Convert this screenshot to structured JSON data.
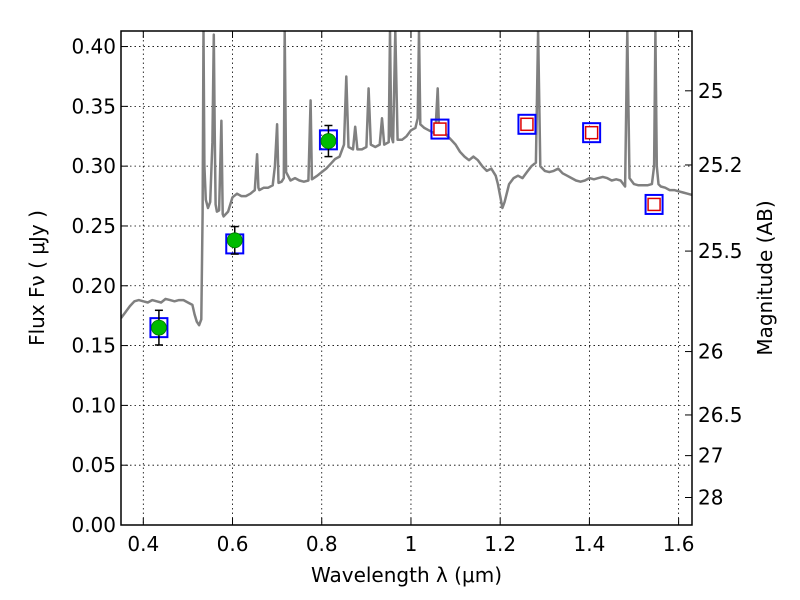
{
  "chart_data": {
    "type": "line",
    "xlabel": "Wavelength  λ (μm)",
    "ylabel": "Flux  Fν ( μJy )",
    "ylabel_right": "Magnitude (AB)",
    "xlim": [
      0.35,
      1.63
    ],
    "ylim": [
      0.0,
      0.413
    ],
    "grid": true,
    "x_ticks": [
      {
        "value": 0.4,
        "label": "0.4"
      },
      {
        "value": 0.6,
        "label": "0.6"
      },
      {
        "value": 0.8,
        "label": "0.8"
      },
      {
        "value": 1.0,
        "label": "1"
      },
      {
        "value": 1.2,
        "label": "1.2"
      },
      {
        "value": 1.4,
        "label": "1.4"
      },
      {
        "value": 1.6,
        "label": "1.6"
      }
    ],
    "y_ticks": [
      {
        "value": 0.0,
        "label": "0.00"
      },
      {
        "value": 0.05,
        "label": "0.05"
      },
      {
        "value": 0.1,
        "label": "0.10"
      },
      {
        "value": 0.15,
        "label": "0.15"
      },
      {
        "value": 0.2,
        "label": "0.20"
      },
      {
        "value": 0.25,
        "label": "0.25"
      },
      {
        "value": 0.3,
        "label": "0.30"
      },
      {
        "value": 0.35,
        "label": "0.35"
      },
      {
        "value": 0.4,
        "label": "0.40"
      }
    ],
    "right_ticks": [
      {
        "flux": 0.363,
        "label": "25"
      },
      {
        "flux": 0.301,
        "label": "25.2"
      },
      {
        "flux": 0.229,
        "label": "25.5"
      },
      {
        "flux": 0.145,
        "label": "26"
      },
      {
        "flux": 0.092,
        "label": "26.5"
      },
      {
        "flux": 0.058,
        "label": "27"
      },
      {
        "flux": 0.023,
        "label": "28"
      }
    ],
    "series": [
      {
        "kind": "line",
        "color": "#808080",
        "points": [
          [
            0.35,
            0.173
          ],
          [
            0.36,
            0.178
          ],
          [
            0.37,
            0.183
          ],
          [
            0.38,
            0.187
          ],
          [
            0.39,
            0.188
          ],
          [
            0.4,
            0.187
          ],
          [
            0.41,
            0.186
          ],
          [
            0.42,
            0.188
          ],
          [
            0.43,
            0.187
          ],
          [
            0.44,
            0.186
          ],
          [
            0.45,
            0.189
          ],
          [
            0.46,
            0.188
          ],
          [
            0.47,
            0.187
          ],
          [
            0.48,
            0.188
          ],
          [
            0.49,
            0.188
          ],
          [
            0.5,
            0.186
          ],
          [
            0.51,
            0.184
          ],
          [
            0.515,
            0.176
          ],
          [
            0.52,
            0.17
          ],
          [
            0.525,
            0.167
          ],
          [
            0.53,
            0.172
          ],
          [
            0.533,
            0.26
          ],
          [
            0.535,
            0.413
          ],
          [
            0.537,
            0.3
          ],
          [
            0.54,
            0.272
          ],
          [
            0.545,
            0.265
          ],
          [
            0.55,
            0.27
          ],
          [
            0.555,
            0.32
          ],
          [
            0.558,
            0.41
          ],
          [
            0.56,
            0.33
          ],
          [
            0.562,
            0.268
          ],
          [
            0.565,
            0.262
          ],
          [
            0.57,
            0.263
          ],
          [
            0.575,
            0.338
          ],
          [
            0.578,
            0.26
          ],
          [
            0.58,
            0.258
          ],
          [
            0.59,
            0.262
          ],
          [
            0.6,
            0.274
          ],
          [
            0.61,
            0.277
          ],
          [
            0.62,
            0.275
          ],
          [
            0.63,
            0.275
          ],
          [
            0.64,
            0.277
          ],
          [
            0.65,
            0.28
          ],
          [
            0.655,
            0.31
          ],
          [
            0.658,
            0.282
          ],
          [
            0.66,
            0.28
          ],
          [
            0.67,
            0.282
          ],
          [
            0.68,
            0.282
          ],
          [
            0.69,
            0.284
          ],
          [
            0.695,
            0.3
          ],
          [
            0.7,
            0.335
          ],
          [
            0.703,
            0.286
          ],
          [
            0.71,
            0.287
          ],
          [
            0.715,
            0.29
          ],
          [
            0.717,
            0.413
          ],
          [
            0.72,
            0.295
          ],
          [
            0.73,
            0.288
          ],
          [
            0.74,
            0.29
          ],
          [
            0.75,
            0.288
          ],
          [
            0.76,
            0.287
          ],
          [
            0.77,
            0.288
          ],
          [
            0.775,
            0.355
          ],
          [
            0.778,
            0.289
          ],
          [
            0.79,
            0.292
          ],
          [
            0.8,
            0.295
          ],
          [
            0.81,
            0.298
          ],
          [
            0.82,
            0.302
          ],
          [
            0.83,
            0.306
          ],
          [
            0.84,
            0.308
          ],
          [
            0.85,
            0.318
          ],
          [
            0.855,
            0.375
          ],
          [
            0.86,
            0.316
          ],
          [
            0.87,
            0.314
          ],
          [
            0.875,
            0.333
          ],
          [
            0.88,
            0.314
          ],
          [
            0.89,
            0.314
          ],
          [
            0.9,
            0.316
          ],
          [
            0.905,
            0.365
          ],
          [
            0.91,
            0.318
          ],
          [
            0.92,
            0.316
          ],
          [
            0.93,
            0.318
          ],
          [
            0.935,
            0.34
          ],
          [
            0.94,
            0.318
          ],
          [
            0.95,
            0.32
          ],
          [
            0.953,
            0.413
          ],
          [
            0.956,
            0.325
          ],
          [
            0.96,
            0.32
          ],
          [
            0.965,
            0.413
          ],
          [
            0.97,
            0.322
          ],
          [
            0.98,
            0.322
          ],
          [
            0.99,
            0.325
          ],
          [
            1.0,
            0.33
          ],
          [
            1.01,
            0.332
          ],
          [
            1.015,
            0.34
          ],
          [
            1.018,
            0.413
          ],
          [
            1.021,
            0.335
          ],
          [
            1.03,
            0.332
          ],
          [
            1.04,
            0.33
          ],
          [
            1.05,
            0.328
          ],
          [
            1.055,
            0.33
          ],
          [
            1.06,
            0.365
          ],
          [
            1.063,
            0.33
          ],
          [
            1.07,
            0.33
          ],
          [
            1.08,
            0.326
          ],
          [
            1.09,
            0.322
          ],
          [
            1.1,
            0.318
          ],
          [
            1.11,
            0.312
          ],
          [
            1.12,
            0.308
          ],
          [
            1.13,
            0.305
          ],
          [
            1.14,
            0.308
          ],
          [
            1.15,
            0.305
          ],
          [
            1.16,
            0.3
          ],
          [
            1.17,
            0.296
          ],
          [
            1.18,
            0.298
          ],
          [
            1.19,
            0.292
          ],
          [
            1.195,
            0.285
          ],
          [
            1.2,
            0.275
          ],
          [
            1.205,
            0.265
          ],
          [
            1.21,
            0.27
          ],
          [
            1.22,
            0.285
          ],
          [
            1.23,
            0.29
          ],
          [
            1.24,
            0.292
          ],
          [
            1.25,
            0.29
          ],
          [
            1.26,
            0.295
          ],
          [
            1.27,
            0.3
          ],
          [
            1.28,
            0.303
          ],
          [
            1.285,
            0.413
          ],
          [
            1.29,
            0.3
          ],
          [
            1.3,
            0.296
          ],
          [
            1.31,
            0.295
          ],
          [
            1.32,
            0.296
          ],
          [
            1.33,
            0.298
          ],
          [
            1.34,
            0.294
          ],
          [
            1.35,
            0.292
          ],
          [
            1.36,
            0.29
          ],
          [
            1.37,
            0.288
          ],
          [
            1.38,
            0.287
          ],
          [
            1.39,
            0.288
          ],
          [
            1.4,
            0.29
          ],
          [
            1.41,
            0.289
          ],
          [
            1.42,
            0.29
          ],
          [
            1.43,
            0.291
          ],
          [
            1.44,
            0.29
          ],
          [
            1.45,
            0.288
          ],
          [
            1.46,
            0.289
          ],
          [
            1.47,
            0.288
          ],
          [
            1.48,
            0.283
          ],
          [
            1.485,
            0.413
          ],
          [
            1.49,
            0.29
          ],
          [
            1.5,
            0.285
          ],
          [
            1.51,
            0.284
          ],
          [
            1.52,
            0.284
          ],
          [
            1.53,
            0.284
          ],
          [
            1.54,
            0.285
          ],
          [
            1.545,
            0.3
          ],
          [
            1.548,
            0.413
          ],
          [
            1.551,
            0.3
          ],
          [
            1.555,
            0.285
          ],
          [
            1.56,
            0.283
          ],
          [
            1.57,
            0.282
          ],
          [
            1.58,
            0.28
          ],
          [
            1.59,
            0.28
          ],
          [
            1.6,
            0.279
          ],
          [
            1.61,
            0.278
          ],
          [
            1.62,
            0.277
          ],
          [
            1.63,
            0.276
          ]
        ]
      },
      {
        "kind": "blue-square",
        "color": "#0000ff",
        "points": [
          [
            0.435,
            0.165
          ],
          [
            0.605,
            0.235
          ],
          [
            0.815,
            0.322
          ],
          [
            1.065,
            0.331
          ],
          [
            1.26,
            0.335
          ],
          [
            1.405,
            0.328
          ],
          [
            1.545,
            0.268
          ]
        ]
      },
      {
        "kind": "green-circle-with-error",
        "color": "#00bb00",
        "points": [
          {
            "x": 0.435,
            "y": 0.165,
            "err": 0.0145
          },
          {
            "x": 0.605,
            "y": 0.238,
            "err": 0.0115
          },
          {
            "x": 0.815,
            "y": 0.321,
            "err": 0.013
          }
        ]
      },
      {
        "kind": "red-square",
        "color": "#dd0000",
        "points": [
          [
            1.065,
            0.331
          ],
          [
            1.26,
            0.335
          ],
          [
            1.405,
            0.328
          ],
          [
            1.545,
            0.268
          ]
        ]
      }
    ]
  }
}
